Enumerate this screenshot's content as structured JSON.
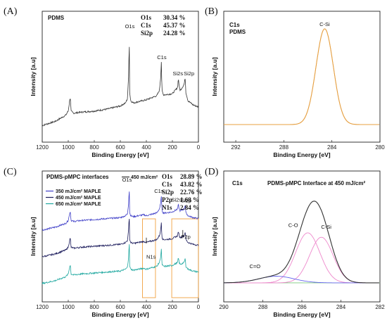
{
  "panels": [
    {
      "label": "(A)",
      "chart_data": {
        "type": "line",
        "sample": "PDMS",
        "xlabel": "Binding Energy [eV]",
        "ylabel": "Intensity [a.u]",
        "xlim": [
          1200,
          0
        ],
        "xticks": [
          1200,
          1000,
          800,
          600,
          400,
          200,
          0
        ],
        "series": [
          {
            "color": "#333333",
            "x": [
              1200,
              1100,
              1020,
              1000,
              985,
              978,
              960,
              900,
              800,
              700,
              600,
              560,
              545,
              535,
              532,
              528,
              520,
              500,
              400,
              320,
              300,
              290,
              285,
              280,
              270,
              250,
              200,
              160,
              154,
              148,
              140,
              110,
              102,
              96,
              80,
              40,
              0
            ],
            "y": [
              8,
              12,
              18,
              22,
              36,
              22,
              20,
              21,
              22,
              24,
              27,
              30,
              34,
              60,
              100,
              40,
              32,
              30,
              33,
              37,
              42,
              55,
              70,
              42,
              38,
              38,
              39,
              45,
              54,
              46,
              42,
              48,
              54,
              40,
              32,
              28,
              26
            ]
          }
        ],
        "peak_labels": [
          {
            "text": "O1s",
            "x": 532
          },
          {
            "text": "C1s",
            "x": 285
          },
          {
            "text": "Si2s",
            "x": 154
          },
          {
            "text": "Si2p",
            "x": 102
          }
        ],
        "composition": [
          {
            "element": "O1s",
            "value": "30.34 %"
          },
          {
            "element": "C1s",
            "value": "45.37 %"
          },
          {
            "element": "Si2p",
            "value": "24.28 %"
          }
        ]
      }
    },
    {
      "label": "(B)",
      "chart_data": {
        "type": "line",
        "sample_line1": "C1s",
        "sample_line2": "PDMS",
        "xlabel": "Binding Energy [eV]",
        "ylabel": "Intensity [a.u]",
        "xlim": [
          293,
          280
        ],
        "xticks": [
          292,
          288,
          284,
          280
        ],
        "series": [
          {
            "color": "#e8a040",
            "shape": "gaussian",
            "center": 284.6,
            "sigma": 0.72,
            "height": 100,
            "baseline": 5
          }
        ],
        "peak_labels": [
          {
            "text": "C-Si",
            "x": 284.6
          }
        ]
      }
    },
    {
      "label": "(C)",
      "chart_data": {
        "type": "line",
        "title": "PDMS-pMPC interfaces",
        "xlabel": "Binding Energy [eV]",
        "ylabel": "Intensity [a.u]",
        "xlim": [
          1200,
          0
        ],
        "xticks": [
          1200,
          1000,
          800,
          600,
          400,
          200,
          0
        ],
        "legend": [
          {
            "text": "350 mJ/cm² MAPLE",
            "color": "#4040c8"
          },
          {
            "text": "450 mJ/cm² MAPLE",
            "color": "#1c1c5c"
          },
          {
            "text": "650 mJ/cm² MAPLE",
            "color": "#20a8a0"
          }
        ],
        "series": [
          {
            "name": "350 mJ/cm² MAPLE",
            "color": "#4040c8",
            "offset": 62
          },
          {
            "name": "450 mJ/cm² MAPLE",
            "color": "#1c1c5c",
            "offset": 34
          },
          {
            "name": "650 mJ/cm² MAPLE",
            "color": "#20a8a0",
            "offset": 6
          }
        ],
        "shape": {
          "x": [
            1200,
            1100,
            1020,
            1000,
            985,
            978,
            960,
            900,
            800,
            700,
            600,
            560,
            545,
            535,
            532,
            528,
            520,
            500,
            420,
            400,
            320,
            300,
            290,
            285,
            280,
            270,
            250,
            200,
            160,
            154,
            148,
            140,
            110,
            102,
            96,
            80,
            40,
            0
          ],
          "y": [
            0,
            3,
            7,
            10,
            20,
            10,
            9,
            10,
            11,
            12,
            13,
            15,
            17,
            30,
            48,
            18,
            15,
            14,
            16,
            15,
            18,
            22,
            28,
            36,
            20,
            18,
            18,
            19,
            22,
            27,
            22,
            20,
            22,
            26,
            18,
            15,
            13,
            12
          ]
        },
        "boxes": [
          [
            430,
            330
          ],
          [
            205,
            0
          ]
        ],
        "peak_labels": [
          {
            "text": "O1s",
            "x": 532
          },
          {
            "text": "C1s",
            "x": 285
          },
          {
            "text": "Si2s",
            "x": 154
          },
          {
            "text": "Si2p",
            "x": 102
          },
          {
            "text": "N1s",
            "x": 400
          },
          {
            "text": "P2p",
            "x": 133
          }
        ],
        "inset_label": "450 mJ/cm²",
        "composition": [
          {
            "element": "O1s",
            "value": "28.89 %"
          },
          {
            "element": "C1s",
            "value": "43.82 %"
          },
          {
            "element": "Si2p",
            "value": "22.76 %"
          },
          {
            "element": "P2p",
            "value": "1.68 %"
          },
          {
            "element": "N1s",
            "value": "2.84 %"
          }
        ]
      }
    },
    {
      "label": "(D)",
      "chart_data": {
        "type": "line",
        "sample": "C1s",
        "title": "PDMS-pMPC Interface at 450 mJ/cm²",
        "xlabel": "Binding Energy [eV]",
        "ylabel": "Intensity [a.u]",
        "xlim": [
          290,
          282
        ],
        "xticks": [
          290,
          288,
          286,
          284,
          282
        ],
        "baseline": {
          "color": "#7cc87c",
          "value": 2
        },
        "components": [
          {
            "label": "C-Si",
            "center": 285.0,
            "sigma": 0.6,
            "height": 62,
            "color": "#ee88cc"
          },
          {
            "label": "C-O",
            "center": 285.7,
            "sigma": 0.62,
            "height": 68,
            "color": "#ee88cc"
          },
          {
            "label": "C=O",
            "center": 287.3,
            "sigma": 0.9,
            "height": 9,
            "color": "#6666ee"
          }
        ],
        "envelope_color": "#333333"
      }
    }
  ]
}
